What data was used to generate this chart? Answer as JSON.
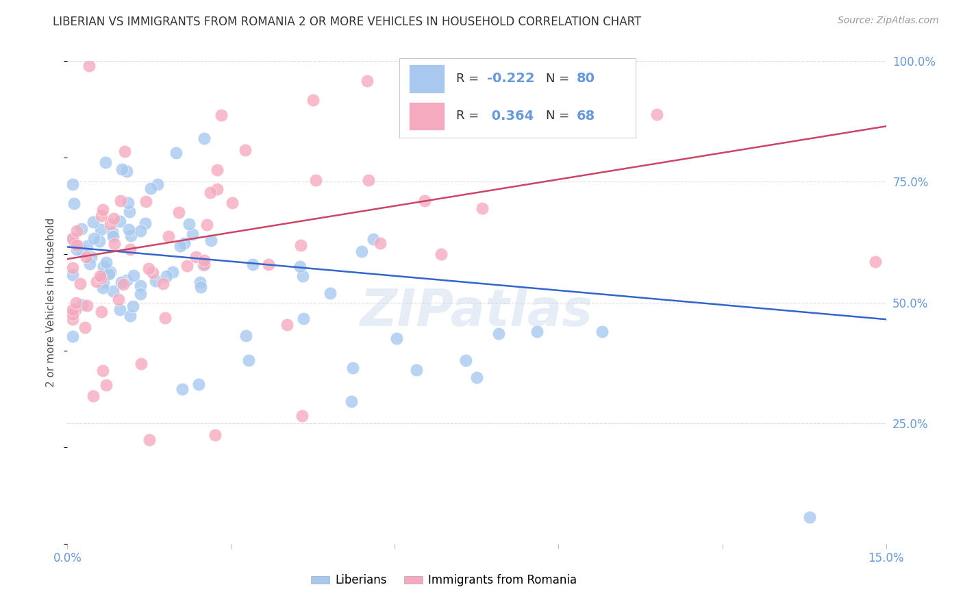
{
  "title": "LIBERIAN VS IMMIGRANTS FROM ROMANIA 2 OR MORE VEHICLES IN HOUSEHOLD CORRELATION CHART",
  "source": "Source: ZipAtlas.com",
  "ylabel": "2 or more Vehicles in Household",
  "xmin": 0.0,
  "xmax": 0.15,
  "ymin": 0.0,
  "ymax": 1.0,
  "liberian_R": -0.222,
  "liberian_N": 80,
  "romania_R": 0.364,
  "romania_N": 68,
  "blue_scatter_color": "#A8C8F0",
  "pink_scatter_color": "#F5AABF",
  "blue_line_color": "#3366CC",
  "pink_line_color": "#CC4466",
  "watermark": "ZIPatlas",
  "background_color": "#FFFFFF",
  "grid_color": "#DDDDDD",
  "label_color": "#6699DD",
  "title_color": "#333333",
  "lib_line_x0": 0.0,
  "lib_line_y0": 0.615,
  "lib_line_x1": 0.15,
  "lib_line_y1": 0.465,
  "rom_line_x0": 0.0,
  "rom_line_y0": 0.59,
  "rom_line_x1": 0.15,
  "rom_line_y1": 0.865
}
